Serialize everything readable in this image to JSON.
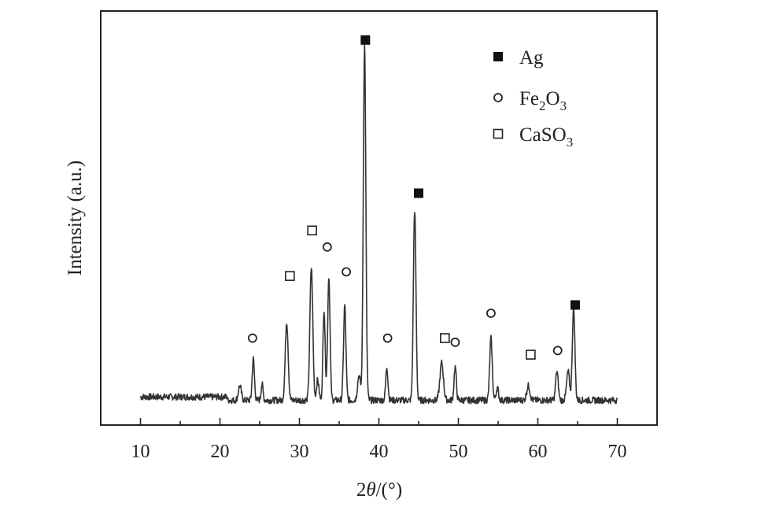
{
  "chart_data": {
    "type": "line",
    "xlabel_prefix": "2",
    "xlabel_theta": "θ",
    "xlabel_suffix": "/(°)",
    "ylabel": "Intensity (a.u.)",
    "xlim": [
      5,
      75
    ],
    "xticks": [
      "10",
      "20",
      "30",
      "40",
      "50",
      "60",
      "70"
    ],
    "x_tick_values": [
      10,
      20,
      30,
      40,
      50,
      60,
      70
    ],
    "ylim": [
      0,
      100
    ],
    "y_ticks_labeled": false,
    "grid": false,
    "legend_position": "top-right",
    "legend": [
      {
        "marker": "filled-square",
        "label": "Ag",
        "label_main": "Ag",
        "subscripts": []
      },
      {
        "marker": "open-circle",
        "label": "Fe2O3",
        "parts": [
          [
            "Fe",
            ""
          ],
          [
            "2",
            "sub"
          ],
          [
            "O",
            ""
          ],
          [
            "3",
            "sub"
          ]
        ]
      },
      {
        "marker": "open-square",
        "label": "CaSO3",
        "parts": [
          [
            "CaSO",
            ""
          ],
          [
            "3",
            "sub"
          ]
        ]
      }
    ],
    "baseline": 6,
    "peaks": [
      {
        "x": 22.5,
        "h": 3.5,
        "w": 0.18
      },
      {
        "x": 24.2,
        "h": 10,
        "w": 0.14
      },
      {
        "x": 25.3,
        "h": 4,
        "w": 0.12
      },
      {
        "x": 28.4,
        "h": 19,
        "w": 0.18
      },
      {
        "x": 31.5,
        "h": 32,
        "w": 0.18
      },
      {
        "x": 32.3,
        "h": 5,
        "w": 0.15
      },
      {
        "x": 33.1,
        "h": 22,
        "w": 0.14
      },
      {
        "x": 33.7,
        "h": 30,
        "w": 0.15
      },
      {
        "x": 35.7,
        "h": 23,
        "w": 0.15
      },
      {
        "x": 37.5,
        "h": 6,
        "w": 0.18
      },
      {
        "x": 38.2,
        "h": 86,
        "w": 0.16
      },
      {
        "x": 41.0,
        "h": 8,
        "w": 0.14
      },
      {
        "x": 44.5,
        "h": 46,
        "w": 0.16
      },
      {
        "x": 47.9,
        "h": 9,
        "w": 0.22
      },
      {
        "x": 49.6,
        "h": 8,
        "w": 0.14
      },
      {
        "x": 54.1,
        "h": 15,
        "w": 0.16
      },
      {
        "x": 54.9,
        "h": 3,
        "w": 0.15
      },
      {
        "x": 58.8,
        "h": 3.5,
        "w": 0.2
      },
      {
        "x": 62.4,
        "h": 7,
        "w": 0.16
      },
      {
        "x": 63.8,
        "h": 7,
        "w": 0.18
      },
      {
        "x": 64.5,
        "h": 22,
        "w": 0.16
      }
    ],
    "markers": [
      {
        "type": "filled-square",
        "x": 38.3,
        "y": 93
      },
      {
        "type": "filled-square",
        "x": 45.0,
        "y": 56
      },
      {
        "type": "filled-square",
        "x": 64.7,
        "y": 29
      },
      {
        "type": "open-circle",
        "x": 24.1,
        "y": 21
      },
      {
        "type": "open-circle",
        "x": 33.5,
        "y": 43
      },
      {
        "type": "open-circle",
        "x": 35.9,
        "y": 37
      },
      {
        "type": "open-circle",
        "x": 41.1,
        "y": 21
      },
      {
        "type": "open-circle",
        "x": 49.6,
        "y": 20
      },
      {
        "type": "open-circle",
        "x": 54.1,
        "y": 27
      },
      {
        "type": "open-circle",
        "x": 62.5,
        "y": 18
      },
      {
        "type": "open-square",
        "x": 28.8,
        "y": 36
      },
      {
        "type": "open-square",
        "x": 31.6,
        "y": 47
      },
      {
        "type": "open-square",
        "x": 48.3,
        "y": 21
      },
      {
        "type": "open-square",
        "x": 59.1,
        "y": 17
      }
    ]
  }
}
